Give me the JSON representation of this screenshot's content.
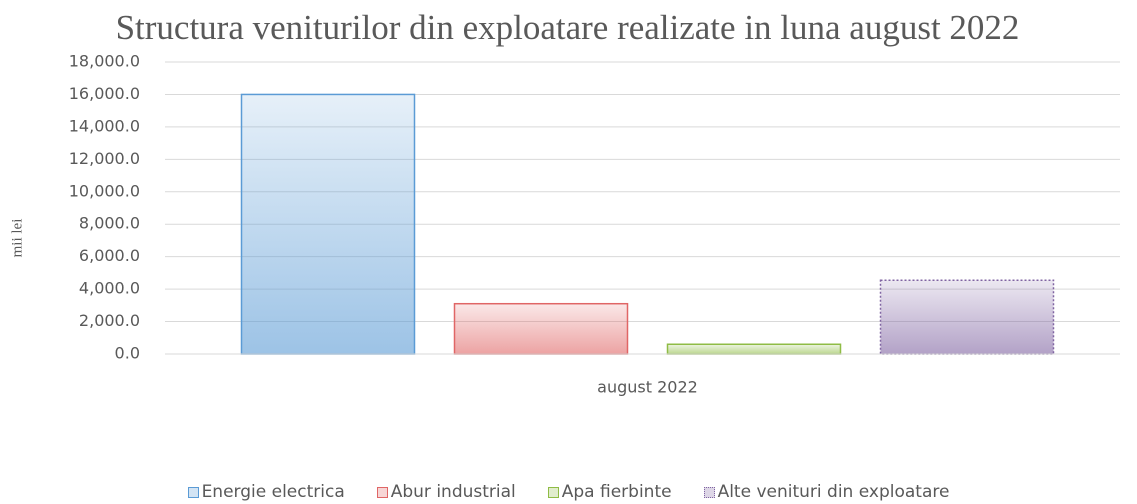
{
  "chart_data": {
    "type": "bar",
    "title": "Structura veniturilor din exploatare realizate in luna august 2022",
    "y_label": "mii lei",
    "categories": [
      "august 2022"
    ],
    "series": [
      {
        "name": "Energie electrica",
        "color": "#5b9bd5",
        "values": [
          16000
        ]
      },
      {
        "name": "Abur industrial",
        "color": "#e06666",
        "values": [
          3100
        ]
      },
      {
        "name": "Apa fierbinte",
        "color": "#8fbc45",
        "values": [
          600
        ]
      },
      {
        "name": "Alte venituri din exploatare",
        "color": "#8064a2",
        "values": [
          4550
        ]
      }
    ],
    "ylim": [
      0,
      18000
    ],
    "yticks": [
      {
        "value": 0,
        "label": "0.0"
      },
      {
        "value": 2000,
        "label": "2,000.0"
      },
      {
        "value": 4000,
        "label": "4,000.0"
      },
      {
        "value": 6000,
        "label": "6,000.0"
      },
      {
        "value": 8000,
        "label": "8,000.0"
      },
      {
        "value": 10000,
        "label": "10,000.0"
      },
      {
        "value": 12000,
        "label": "12,000.0"
      },
      {
        "value": 14000,
        "label": "14,000.0"
      },
      {
        "value": 16000,
        "label": "16,000.0"
      },
      {
        "value": 18000,
        "label": "18,000.0"
      }
    ],
    "grid": true,
    "legend": "bottom"
  }
}
